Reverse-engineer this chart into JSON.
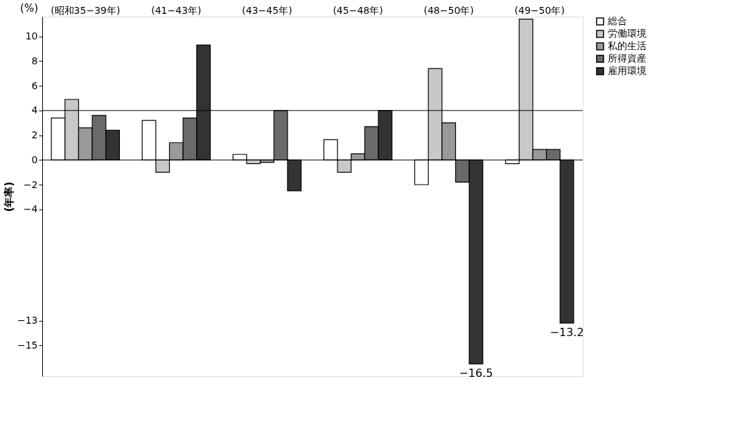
{
  "chart_data": {
    "type": "bar",
    "ylabel": "(年率)",
    "annotations": [
      "(%)"
    ],
    "categories": [
      "(昭和35−39年)",
      "(41−43年)",
      "(43−45年)",
      "(45−48年)",
      "(48−50年)",
      "(49−50年)"
    ],
    "series": [
      {
        "name": "総合",
        "color": "#ffffff",
        "values": [
          3.4,
          3.2,
          0.45,
          1.65,
          -2.0,
          -0.3
        ]
      },
      {
        "name": "労働環境",
        "color": "#c8c8c8",
        "values": [
          4.9,
          -1.0,
          -0.3,
          -1.0,
          7.4,
          11.4
        ]
      },
      {
        "name": "私的生活",
        "color": "#9a9a9a",
        "values": [
          2.6,
          1.4,
          -0.2,
          0.5,
          3.0,
          0.85
        ]
      },
      {
        "name": "所得資産",
        "color": "#6a6a6a",
        "values": [
          3.6,
          3.4,
          4.0,
          2.7,
          -1.8,
          0.85
        ]
      },
      {
        "name": "雇用環境",
        "color": "#333333",
        "values": [
          2.4,
          9.3,
          -2.5,
          4.0,
          -16.5,
          -13.2
        ],
        "value_labels": [
          null,
          null,
          null,
          null,
          "−16.5",
          "−13.2"
        ]
      }
    ],
    "ylim": [
      -17.5,
      11.6
    ],
    "yticks": [
      -15,
      -13,
      -4,
      -2,
      0,
      2,
      4,
      6,
      8,
      10
    ],
    "ref_lines": [
      {
        "axis": "y",
        "value": 0
      },
      {
        "axis": "y",
        "value": 4
      }
    ],
    "grid": false,
    "legend": "right"
  }
}
